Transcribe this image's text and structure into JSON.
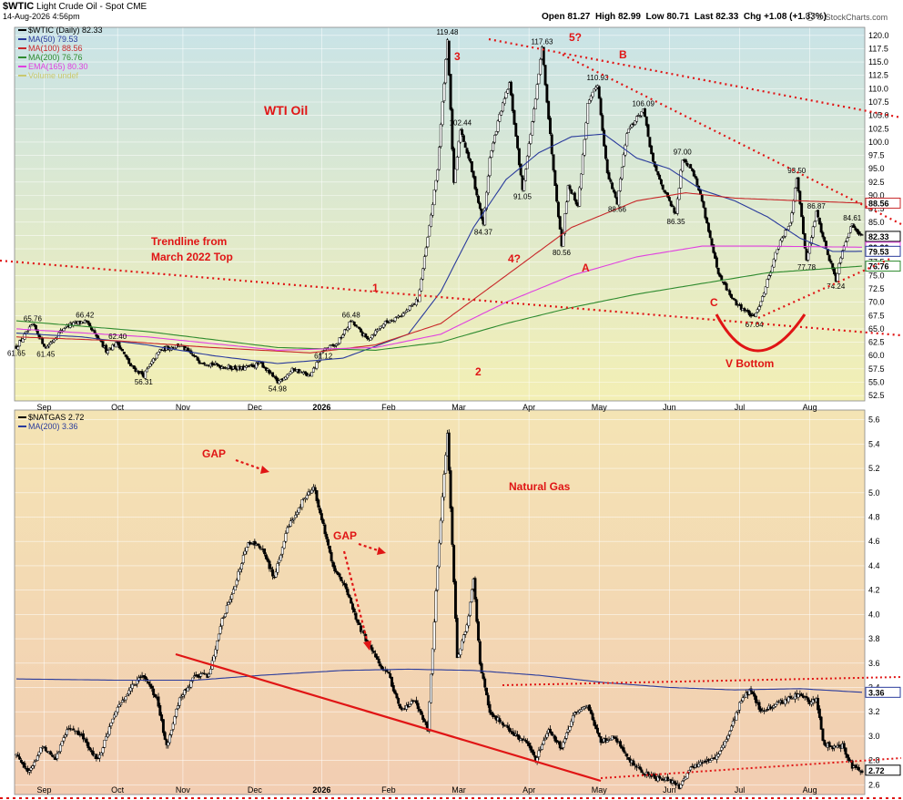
{
  "header": {
    "symbol": "$WTIC",
    "name": "Light Crude Oil - Spot",
    "exchange": "CME",
    "date": "14-Aug-2026 4:56pm",
    "ohlc": "Open 81.27  High 82.99  Low 80.71  Last 82.33  Chg +1.08 (+1.33%)",
    "ohlc_parts": {
      "open_label": "Open",
      "open": "81.27",
      "high_label": "High",
      "high": "82.99",
      "low_label": "Low",
      "low": "80.71",
      "last_label": "Last",
      "last": "82.33",
      "chg_label": "Chg",
      "chg": "+1.08 (+1.33%)"
    },
    "credit": "© StockCharts.com",
    "gear_icon": "stockcharts-logo-icon"
  },
  "colors": {
    "oil_bg_top": "#c9e3e7",
    "oil_bg_bottom": "#f3efb4",
    "gas_bg_top": "#f4e4b4",
    "gas_bg_bottom": "#f2cdb2",
    "candle": "#000000",
    "ma50": "#2a3b9c",
    "ma100": "#c8282a",
    "ma200": "#2f8b2f",
    "ema165": "#e040e0",
    "volume": "#c9c970",
    "annotation": "#e01515"
  },
  "chart_data": [
    {
      "type": "candlestick",
      "title": "$WTIC Light Crude Oil - Spot CME",
      "panel_title": "WTI Oil",
      "legend": [
        {
          "label": "$WTIC (Daily) 82.33",
          "color": "#000000"
        },
        {
          "label": "MA(50) 79.53",
          "color": "#2a3b9c"
        },
        {
          "label": "MA(100) 88.56",
          "color": "#c8282a"
        },
        {
          "label": "MA(200) 76.76",
          "color": "#2f8b2f"
        },
        {
          "label": "EMA(165) 80.30",
          "color": "#e040e0"
        },
        {
          "label": "Volume undef",
          "color": "#c9c970"
        }
      ],
      "x_ticks": [
        "Sep",
        "Oct",
        "Nov",
        "Dec",
        "2026",
        "Feb",
        "Mar",
        "Apr",
        "May",
        "Jun",
        "Jul",
        "Aug"
      ],
      "y_ticks": [
        "52.5",
        "55.0",
        "57.5",
        "60.0",
        "62.5",
        "65.0",
        "67.5",
        "70.0",
        "72.5",
        "75.0",
        "77.5",
        "80.0",
        "82.5",
        "85.0",
        "87.5",
        "90.0",
        "92.5",
        "95.0",
        "97.5",
        "100.0",
        "102.5",
        "105.0",
        "107.5",
        "110.0",
        "112.5",
        "115.0",
        "117.5",
        "120.0"
      ],
      "ylim": [
        51.5,
        121.5
      ],
      "price_keypoints": [
        [
          0,
          61.65
        ],
        [
          10,
          65.76
        ],
        [
          18,
          61.45
        ],
        [
          30,
          65.5
        ],
        [
          42,
          66.42
        ],
        [
          55,
          61
        ],
        [
          62,
          62.4
        ],
        [
          70,
          58
        ],
        [
          78,
          56.31
        ],
        [
          88,
          61
        ],
        [
          100,
          62
        ],
        [
          112,
          59
        ],
        [
          125,
          58
        ],
        [
          138,
          57.5
        ],
        [
          150,
          58.5
        ],
        [
          160,
          54.98
        ],
        [
          170,
          57.5
        ],
        [
          180,
          56
        ],
        [
          188,
          61.12
        ],
        [
          196,
          62
        ],
        [
          205,
          66.48
        ],
        [
          215,
          63
        ],
        [
          225,
          66
        ],
        [
          238,
          68
        ],
        [
          246,
          70.5
        ],
        [
          252,
          82
        ],
        [
          258,
          95
        ],
        [
          264,
          119.48
        ],
        [
          268,
          92
        ],
        [
          272,
          102.44
        ],
        [
          278,
          96
        ],
        [
          286,
          84.37
        ],
        [
          290,
          97
        ],
        [
          296,
          105
        ],
        [
          302,
          111
        ],
        [
          310,
          91.05
        ],
        [
          318,
          108
        ],
        [
          322,
          117.63
        ],
        [
          328,
          98
        ],
        [
          334,
          80.56
        ],
        [
          338,
          92
        ],
        [
          344,
          88
        ],
        [
          350,
          107
        ],
        [
          356,
          110.93
        ],
        [
          362,
          94
        ],
        [
          368,
          88.66
        ],
        [
          374,
          102
        ],
        [
          384,
          106.09
        ],
        [
          390,
          96
        ],
        [
          398,
          90
        ],
        [
          404,
          86.35
        ],
        [
          408,
          97
        ],
        [
          414,
          95
        ],
        [
          420,
          89
        ],
        [
          430,
          75
        ],
        [
          440,
          70
        ],
        [
          452,
          67.04
        ],
        [
          458,
          72
        ],
        [
          466,
          80
        ],
        [
          474,
          85
        ],
        [
          478,
          93.5
        ],
        [
          484,
          77.78
        ],
        [
          490,
          86.87
        ],
        [
          496,
          80
        ],
        [
          502,
          74.24
        ],
        [
          506,
          80
        ],
        [
          512,
          84.61
        ],
        [
          518,
          82.33
        ]
      ],
      "series": [
        {
          "name": "MA(50)",
          "keypoints": [
            [
              0,
              64.2
            ],
            [
              40,
              63.5
            ],
            [
              80,
              62
            ],
            [
              120,
              60
            ],
            [
              160,
              58.5
            ],
            [
              200,
              59.5
            ],
            [
              240,
              64
            ],
            [
              260,
              72
            ],
            [
              280,
              84
            ],
            [
              300,
              93
            ],
            [
              320,
              98
            ],
            [
              340,
              101
            ],
            [
              360,
              101.5
            ],
            [
              380,
              97
            ],
            [
              400,
              95
            ],
            [
              420,
              91
            ],
            [
              440,
              89
            ],
            [
              460,
              86
            ],
            [
              480,
              82
            ],
            [
              500,
              79.5
            ],
            [
              518,
              79.53
            ]
          ]
        },
        {
          "name": "MA(100)",
          "keypoints": [
            [
              0,
              63.5
            ],
            [
              60,
              62.8
            ],
            [
              120,
              61.5
            ],
            [
              180,
              60.5
            ],
            [
              220,
              62
            ],
            [
              260,
              66
            ],
            [
              300,
              75
            ],
            [
              340,
              84
            ],
            [
              380,
              89
            ],
            [
              410,
              90.5
            ],
            [
              440,
              89.5
            ],
            [
              480,
              89
            ],
            [
              518,
              88.56
            ]
          ]
        },
        {
          "name": "MA(200)",
          "keypoints": [
            [
              0,
              66.5
            ],
            [
              80,
              64.5
            ],
            [
              160,
              61.5
            ],
            [
              220,
              61
            ],
            [
              260,
              62.5
            ],
            [
              300,
              66
            ],
            [
              340,
              69
            ],
            [
              380,
              71.5
            ],
            [
              420,
              73.5
            ],
            [
              460,
              75.5
            ],
            [
              518,
              76.76
            ]
          ]
        },
        {
          "name": "EMA(165)",
          "keypoints": [
            [
              0,
              65
            ],
            [
              80,
              63.5
            ],
            [
              160,
              61
            ],
            [
              220,
              61.5
            ],
            [
              260,
              64
            ],
            [
              300,
              70
            ],
            [
              340,
              75
            ],
            [
              380,
              78.5
            ],
            [
              420,
              80.5
            ],
            [
              460,
              80.5
            ],
            [
              518,
              80.3
            ]
          ]
        }
      ],
      "value_labels": [
        {
          "text": "65.76",
          "i": 10,
          "v": 65.76,
          "pos": "above"
        },
        {
          "text": "61.65",
          "i": 0,
          "v": 61.65,
          "pos": "below"
        },
        {
          "text": "61.45",
          "i": 18,
          "v": 61.45,
          "pos": "below"
        },
        {
          "text": "66.42",
          "i": 42,
          "v": 66.42,
          "pos": "above"
        },
        {
          "text": "62.40",
          "i": 62,
          "v": 62.4,
          "pos": "above"
        },
        {
          "text": "56.31",
          "i": 78,
          "v": 56.31,
          "pos": "below"
        },
        {
          "text": "54.98",
          "i": 160,
          "v": 54.98,
          "pos": "below"
        },
        {
          "text": "61.12",
          "i": 188,
          "v": 61.12,
          "pos": "below"
        },
        {
          "text": "66.48",
          "i": 205,
          "v": 66.48,
          "pos": "above"
        },
        {
          "text": "119.48",
          "i": 264,
          "v": 119.48,
          "pos": "above"
        },
        {
          "text": "102.44",
          "i": 272,
          "v": 102.44,
          "pos": "above"
        },
        {
          "text": "84.37",
          "i": 286,
          "v": 84.37,
          "pos": "below"
        },
        {
          "text": "117.63",
          "i": 322,
          "v": 117.63,
          "pos": "above"
        },
        {
          "text": "91.05",
          "i": 310,
          "v": 91.05,
          "pos": "below"
        },
        {
          "text": "80.56",
          "i": 334,
          "v": 80.56,
          "pos": "below"
        },
        {
          "text": "110.93",
          "i": 356,
          "v": 110.93,
          "pos": "above"
        },
        {
          "text": "88.66",
          "i": 368,
          "v": 88.66,
          "pos": "below"
        },
        {
          "text": "106.09",
          "i": 384,
          "v": 106.09,
          "pos": "above"
        },
        {
          "text": "97.00",
          "i": 408,
          "v": 97.0,
          "pos": "above"
        },
        {
          "text": "86.35",
          "i": 404,
          "v": 86.35,
          "pos": "below"
        },
        {
          "text": "67.04",
          "i": 452,
          "v": 67.04,
          "pos": "below"
        },
        {
          "text": "93.50",
          "i": 478,
          "v": 93.5,
          "pos": "above"
        },
        {
          "text": "86.87",
          "i": 490,
          "v": 86.87,
          "pos": "above"
        },
        {
          "text": "77.78",
          "i": 484,
          "v": 77.78,
          "pos": "below"
        },
        {
          "text": "74.24",
          "i": 502,
          "v": 74.24,
          "pos": "below"
        },
        {
          "text": "84.61",
          "i": 512,
          "v": 84.61,
          "pos": "above"
        }
      ],
      "right_badges": [
        {
          "text": "88.56",
          "v": 88.56,
          "color": "#c8282a"
        },
        {
          "text": "82.33",
          "v": 82.33,
          "color": "#000000"
        },
        {
          "text": "80.30",
          "v": 80.3,
          "color": "#e040e0"
        },
        {
          "text": "79.53",
          "v": 79.53,
          "color": "#2a3b9c"
        },
        {
          "text": "76.76",
          "v": 76.76,
          "color": "#2f8b2f"
        }
      ],
      "annotations": {
        "trendline_label": [
          "Trendline from",
          "March 2022 Top"
        ],
        "wave_labels": [
          "1",
          "2",
          "3",
          "4?",
          "5?",
          "A",
          "B",
          "C"
        ],
        "v_bottom": "V Bottom"
      }
    },
    {
      "type": "candlestick",
      "title": "$NATGAS 2.72",
      "panel_title": "Natural Gas",
      "legend": [
        {
          "label": "$NATGAS 2.72",
          "color": "#000000"
        },
        {
          "label": "MA(200) 3.36",
          "color": "#2a3b9c"
        }
      ],
      "x_ticks": [
        "Sep",
        "Oct",
        "Nov",
        "Dec",
        "2026",
        "Feb",
        "Mar",
        "Apr",
        "May",
        "Jun",
        "Jul",
        "Aug"
      ],
      "y_ticks": [
        "2.6",
        "2.8",
        "3.0",
        "3.2",
        "3.4",
        "3.6",
        "3.8",
        "4.0",
        "4.2",
        "4.4",
        "4.6",
        "4.8",
        "5.0",
        "5.2",
        "5.4",
        "5.6"
      ],
      "ylim": [
        2.52,
        5.68
      ],
      "price_keypoints": [
        [
          0,
          2.85
        ],
        [
          8,
          2.7
        ],
        [
          16,
          2.92
        ],
        [
          24,
          2.82
        ],
        [
          32,
          3.08
        ],
        [
          40,
          3.0
        ],
        [
          50,
          2.8
        ],
        [
          60,
          3.18
        ],
        [
          70,
          3.4
        ],
        [
          78,
          3.5
        ],
        [
          86,
          3.3
        ],
        [
          92,
          2.92
        ],
        [
          100,
          3.3
        ],
        [
          110,
          3.5
        ],
        [
          118,
          3.5
        ],
        [
          126,
          3.95
        ],
        [
          134,
          4.25
        ],
        [
          142,
          4.6
        ],
        [
          150,
          4.55
        ],
        [
          158,
          4.3
        ],
        [
          166,
          4.7
        ],
        [
          176,
          4.95
        ],
        [
          182,
          5.05
        ],
        [
          186,
          4.85
        ],
        [
          194,
          4.4
        ],
        [
          202,
          4.2
        ],
        [
          210,
          3.9
        ],
        [
          216,
          3.75
        ],
        [
          222,
          3.6
        ],
        [
          228,
          3.5
        ],
        [
          236,
          3.2
        ],
        [
          244,
          3.3
        ],
        [
          252,
          3.05
        ],
        [
          258,
          4.4
        ],
        [
          264,
          5.5
        ],
        [
          270,
          3.65
        ],
        [
          276,
          3.9
        ],
        [
          280,
          4.3
        ],
        [
          284,
          3.6
        ],
        [
          290,
          3.2
        ],
        [
          298,
          3.1
        ],
        [
          306,
          3.0
        ],
        [
          312,
          2.95
        ],
        [
          318,
          2.8
        ],
        [
          326,
          3.05
        ],
        [
          334,
          2.9
        ],
        [
          342,
          3.2
        ],
        [
          350,
          3.25
        ],
        [
          358,
          2.95
        ],
        [
          366,
          3.0
        ],
        [
          376,
          2.8
        ],
        [
          384,
          2.7
        ],
        [
          392,
          2.65
        ],
        [
          400,
          2.64
        ],
        [
          406,
          2.58
        ],
        [
          412,
          2.72
        ],
        [
          420,
          2.78
        ],
        [
          428,
          2.82
        ],
        [
          436,
          3.0
        ],
        [
          444,
          3.3
        ],
        [
          450,
          3.38
        ],
        [
          456,
          3.2
        ],
        [
          464,
          3.25
        ],
        [
          472,
          3.3
        ],
        [
          480,
          3.35
        ],
        [
          486,
          3.28
        ],
        [
          490,
          3.32
        ],
        [
          494,
          2.95
        ],
        [
          500,
          2.9
        ],
        [
          506,
          2.92
        ],
        [
          512,
          2.75
        ],
        [
          518,
          2.72
        ]
      ],
      "series": [
        {
          "name": "MA(200)",
          "keypoints": [
            [
              0,
              3.47
            ],
            [
              60,
              3.46
            ],
            [
              110,
              3.46
            ],
            [
              150,
              3.5
            ],
            [
              200,
              3.54
            ],
            [
              240,
              3.55
            ],
            [
              280,
              3.54
            ],
            [
              320,
              3.5
            ],
            [
              360,
              3.44
            ],
            [
              400,
              3.4
            ],
            [
              440,
              3.38
            ],
            [
              480,
              3.39
            ],
            [
              518,
              3.36
            ]
          ]
        }
      ],
      "right_badges": [
        {
          "text": "3.36",
          "v": 3.36,
          "color": "#2a3b9c"
        },
        {
          "text": "2.72",
          "v": 2.72,
          "color": "#000000"
        }
      ],
      "annotations": {
        "gap_labels": [
          "GAP",
          "GAP"
        ]
      }
    }
  ]
}
